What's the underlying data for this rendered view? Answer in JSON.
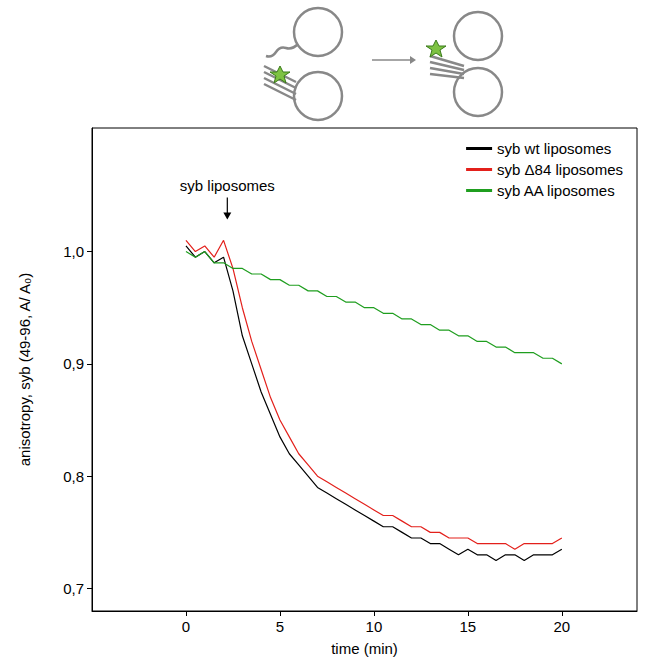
{
  "chart_data": {
    "type": "line",
    "x_label": "time (min)",
    "y_label": "anisotropy, syb (49-96, A/ A₀)",
    "xlim": [
      -5,
      24
    ],
    "xticks": [
      0,
      5,
      10,
      15,
      20
    ],
    "ylim": [
      0.68,
      1.11
    ],
    "yticks": [
      {
        "value": 0.7,
        "label": "0,7"
      },
      {
        "value": 0.8,
        "label": "0,8"
      },
      {
        "value": 0.9,
        "label": "0,9"
      },
      {
        "value": 1.0,
        "label": "1,0"
      }
    ],
    "grid": false,
    "legend": "upper right",
    "annotations": [
      {
        "text": "syb liposomes",
        "x": 2.2,
        "y": 1.025
      }
    ],
    "x": [
      0,
      0.5,
      1,
      1.5,
      2,
      2.5,
      3,
      3.5,
      4,
      4.5,
      5,
      5.5,
      6,
      6.5,
      7,
      7.5,
      8,
      8.5,
      9,
      9.5,
      10,
      10.5,
      11,
      11.5,
      12,
      12.5,
      13,
      13.5,
      14,
      14.5,
      15,
      15.5,
      16,
      16.5,
      17,
      17.5,
      18,
      18.5,
      19,
      19.5,
      20
    ],
    "series": [
      {
        "name": "syb wt liposomes",
        "color": "#000000",
        "values": [
          1.005,
          0.995,
          1.0,
          0.99,
          0.995,
          0.965,
          0.925,
          0.9,
          0.875,
          0.855,
          0.835,
          0.82,
          0.81,
          0.8,
          0.79,
          0.785,
          0.78,
          0.775,
          0.77,
          0.765,
          0.76,
          0.755,
          0.755,
          0.75,
          0.745,
          0.745,
          0.74,
          0.74,
          0.735,
          0.73,
          0.735,
          0.73,
          0.73,
          0.725,
          0.73,
          0.73,
          0.725,
          0.73,
          0.73,
          0.73,
          0.735
        ]
      },
      {
        "name": "syb Δ84 liposomes",
        "color": "#e3201b",
        "values": [
          1.01,
          1.0,
          1.005,
          0.995,
          1.01,
          0.985,
          0.95,
          0.92,
          0.895,
          0.87,
          0.85,
          0.835,
          0.82,
          0.81,
          0.8,
          0.795,
          0.79,
          0.785,
          0.78,
          0.775,
          0.77,
          0.765,
          0.765,
          0.76,
          0.755,
          0.755,
          0.75,
          0.75,
          0.745,
          0.745,
          0.745,
          0.74,
          0.74,
          0.74,
          0.74,
          0.735,
          0.74,
          0.74,
          0.74,
          0.74,
          0.745
        ]
      },
      {
        "name": "syb AA liposomes",
        "color": "#1f9e1f",
        "values": [
          1.0,
          0.995,
          1.0,
          0.99,
          0.99,
          0.985,
          0.985,
          0.98,
          0.98,
          0.975,
          0.975,
          0.97,
          0.97,
          0.965,
          0.965,
          0.96,
          0.96,
          0.955,
          0.955,
          0.95,
          0.95,
          0.945,
          0.945,
          0.94,
          0.94,
          0.935,
          0.935,
          0.93,
          0.93,
          0.925,
          0.925,
          0.92,
          0.92,
          0.915,
          0.915,
          0.91,
          0.91,
          0.91,
          0.905,
          0.905,
          0.9
        ]
      }
    ]
  }
}
